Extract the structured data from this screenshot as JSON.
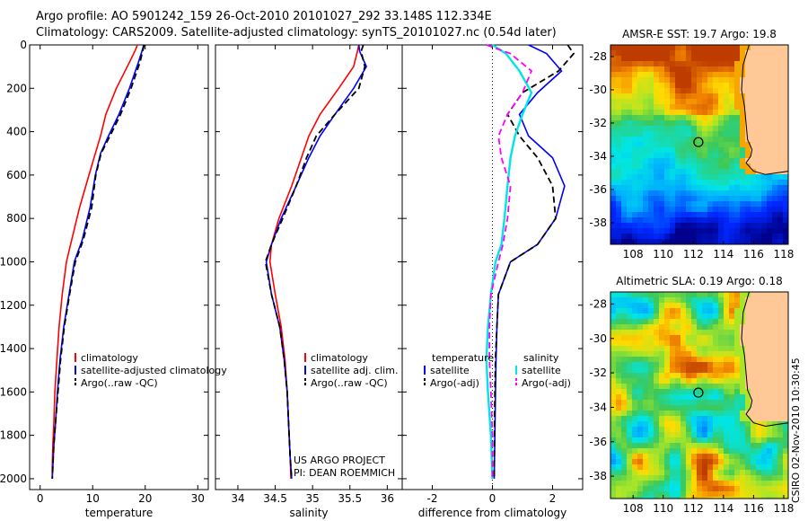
{
  "header": {
    "line1": "Argo profile: AO 5901242_159 26-Oct-2010 20101027_292 33.148S 112.334E",
    "line2": "Climatology: CARS2009. Satellite-adjusted climatology: synTS_20101027.nc (0.54d later)"
  },
  "side_label": "CSIRO 02-Nov-2010 10:30:45",
  "colors": {
    "climatology": "#ff0000",
    "satellite": "#0000ff",
    "argo": "#000000",
    "sat_cyan": "#00e5e5",
    "argo_adj_magenta": "#ff00ff",
    "land": "#ffc896"
  },
  "chart_data": [
    {
      "type": "line",
      "id": "temperature",
      "xlabel": "temperature",
      "ylabel": "",
      "xlim": [
        -2,
        32
      ],
      "ylim": [
        2050,
        0
      ],
      "xticks": [
        0,
        10,
        20,
        30
      ],
      "yticks": [
        0,
        200,
        400,
        600,
        800,
        1000,
        1200,
        1400,
        1600,
        1800,
        2000
      ],
      "legend": {
        "entries": [
          "climatology",
          "satellite-adjusted climatology",
          "Argo(..raw -QC)"
        ],
        "placement": "bottom-right"
      },
      "series": [
        {
          "name": "climatology",
          "color": "#ff0000",
          "style": "solid",
          "x": [
            18.5,
            18.2,
            17,
            14.5,
            12.5,
            11.5,
            10.5,
            9.3,
            7.5,
            6,
            5,
            4.2,
            3.6,
            3.2,
            2.8,
            2.6,
            2.4,
            2.3,
            2.3
          ],
          "y": [
            0,
            20,
            80,
            200,
            320,
            420,
            500,
            600,
            750,
            900,
            1000,
            1150,
            1300,
            1450,
            1600,
            1750,
            1850,
            1950,
            2000
          ]
        },
        {
          "name": "satellite-adjusted climatology",
          "color": "#0000ff",
          "style": "solid",
          "x": [
            19.7,
            19.5,
            18.7,
            17,
            15,
            13,
            11.5,
            10.5,
            9.5,
            8,
            6.5,
            5.5,
            4.5,
            3.8,
            3.3,
            2.9,
            2.6,
            2.4,
            2.3
          ],
          "y": [
            0,
            20,
            80,
            200,
            320,
            420,
            500,
            600,
            750,
            900,
            1000,
            1150,
            1300,
            1450,
            1600,
            1750,
            1850,
            1950,
            2000
          ]
        },
        {
          "name": "Argo(..raw -QC)",
          "color": "#000000",
          "style": "dash",
          "x": [
            19.8,
            19.6,
            19,
            17.3,
            15.3,
            13.3,
            11.6,
            10.6,
            9.8,
            8.2,
            6.7,
            5.6,
            4.6,
            3.9,
            3.4,
            2.9,
            2.6,
            2.4,
            2.3
          ],
          "y": [
            0,
            20,
            80,
            200,
            320,
            420,
            500,
            600,
            750,
            900,
            1000,
            1150,
            1300,
            1450,
            1600,
            1750,
            1850,
            1950,
            2000
          ]
        }
      ]
    },
    {
      "type": "line",
      "id": "salinity",
      "xlabel": "salinity",
      "ylabel": "",
      "xlim": [
        33.7,
        36.2
      ],
      "ylim": [
        2050,
        0
      ],
      "xticks": [
        34,
        34.5,
        35,
        35.5,
        36
      ],
      "yticks": [
        0,
        200,
        400,
        600,
        800,
        1000,
        1200,
        1400,
        1600,
        1800,
        2000
      ],
      "legend": {
        "entries": [
          "climatology",
          "satellite adj. clim.",
          "Argo(..raw -QC)"
        ],
        "placement": "bottom-right"
      },
      "annotations": [
        "US ARGO PROJECT",
        "PI: DEAN ROEMMICH"
      ],
      "series": [
        {
          "name": "climatology",
          "color": "#ff0000",
          "style": "solid",
          "x": [
            35.62,
            35.6,
            35.55,
            35.35,
            35.1,
            34.95,
            34.85,
            34.72,
            34.55,
            34.45,
            34.43,
            34.5,
            34.58,
            34.63,
            34.66,
            34.68,
            34.7,
            34.71
          ],
          "y": [
            0,
            30,
            100,
            200,
            320,
            420,
            520,
            650,
            800,
            920,
            1000,
            1150,
            1300,
            1450,
            1600,
            1750,
            1900,
            2000
          ]
        },
        {
          "name": "satellite adj. clim.",
          "color": "#0000ff",
          "style": "solid",
          "x": [
            35.62,
            35.63,
            35.72,
            35.55,
            35.3,
            35.1,
            34.95,
            34.78,
            34.58,
            34.45,
            34.38,
            34.45,
            34.56,
            34.62,
            34.66,
            34.68,
            34.7,
            34.72
          ],
          "y": [
            0,
            30,
            100,
            200,
            320,
            420,
            520,
            650,
            800,
            920,
            1000,
            1150,
            1300,
            1450,
            1600,
            1750,
            1900,
            2000
          ]
        },
        {
          "name": "Argo(..raw -QC)",
          "color": "#000000",
          "style": "dash",
          "x": [
            35.68,
            35.65,
            35.7,
            35.62,
            35.3,
            35.05,
            34.92,
            34.78,
            34.6,
            34.45,
            34.37,
            34.45,
            34.56,
            34.62,
            34.66,
            34.68,
            34.7,
            34.72
          ],
          "y": [
            0,
            30,
            100,
            200,
            320,
            420,
            520,
            650,
            800,
            920,
            1000,
            1150,
            1300,
            1450,
            1600,
            1750,
            1900,
            2000
          ]
        }
      ]
    },
    {
      "type": "line",
      "id": "difference",
      "xlabel": "difference from climatology",
      "ylabel": "",
      "xlim": [
        -3,
        3
      ],
      "ylim": [
        2050,
        0
      ],
      "xticks": [
        -2,
        0,
        2
      ],
      "yticks": [
        0,
        200,
        400,
        600,
        800,
        1000,
        1200,
        1400,
        1600,
        1800,
        2000
      ],
      "legend": {
        "left_title": "temperature",
        "right_title": "salinity",
        "entries": [
          "satellite",
          "Argo(-adj)",
          "satellite",
          "Argo(-adj)"
        ],
        "placement": "bottom-center"
      },
      "series": [
        {
          "name": "satellite",
          "group": "temperature",
          "color": "#0000ff",
          "style": "solid",
          "x": [
            1.2,
            1.8,
            2.3,
            1.5,
            0.9,
            1.2,
            2.0,
            2.4,
            2.1,
            1.5,
            0.6,
            0.2,
            0.15,
            0.12,
            0.1,
            0.08,
            0.06
          ],
          "y": [
            0,
            40,
            120,
            220,
            320,
            420,
            520,
            650,
            800,
            920,
            1000,
            1150,
            1300,
            1450,
            1600,
            1800,
            2000
          ]
        },
        {
          "name": "Argo(-adj)",
          "group": "temperature",
          "color": "#000000",
          "style": "dash",
          "x": [
            2.5,
            2.7,
            2.2,
            1.0,
            0.5,
            0.9,
            1.5,
            2.0,
            2.1,
            1.5,
            0.6,
            0.2,
            0.15,
            0.1,
            0.08,
            0.07,
            0.06
          ],
          "y": [
            0,
            40,
            120,
            220,
            320,
            420,
            520,
            650,
            800,
            920,
            1000,
            1150,
            1300,
            1450,
            1600,
            1800,
            2000
          ]
        },
        {
          "name": "satellite",
          "group": "salinity",
          "color": "#00e5e5",
          "style": "solid",
          "x": [
            0,
            0.45,
            0.9,
            1.3,
            1.0,
            0.75,
            0.6,
            0.5,
            0.4,
            0.3,
            0.1,
            -0.05,
            -0.15,
            -0.2,
            -0.15,
            -0.05,
            0
          ],
          "y": [
            0,
            40,
            120,
            220,
            320,
            420,
            520,
            650,
            800,
            920,
            1000,
            1150,
            1300,
            1450,
            1600,
            1800,
            2000
          ]
        },
        {
          "name": "Argo(-adj)",
          "group": "salinity",
          "color": "#ff00ff",
          "style": "dash",
          "x": [
            -0.2,
            0.6,
            1.3,
            1.0,
            0.5,
            0.2,
            0.3,
            0.6,
            0.5,
            0.35,
            0.2,
            -0.05,
            -0.1,
            -0.1,
            -0.05,
            0,
            0
          ],
          "y": [
            0,
            40,
            120,
            220,
            320,
            420,
            520,
            650,
            800,
            920,
            1000,
            1150,
            1300,
            1450,
            1600,
            1800,
            2000
          ]
        }
      ]
    },
    {
      "type": "heatmap",
      "id": "sst_map",
      "title": "AMSR-E SST: 19.7 Argo: 19.8",
      "xlim": [
        106.5,
        118.3
      ],
      "ylim": [
        -39.3,
        -27.3
      ],
      "xticks": [
        108,
        110,
        112,
        114,
        116,
        118
      ],
      "yticks": [
        -28,
        -30,
        -32,
        -34,
        -36,
        -38
      ],
      "argo_position": [
        112.334,
        -33.148
      ],
      "coast_lon": [
        115.7,
        115.3,
        115.2,
        115.4,
        115.5,
        115.6,
        115.9,
        115.8,
        115.5,
        116.0,
        116.8,
        117.5,
        118.3
      ],
      "coast_lat": [
        -27.3,
        -28.5,
        -30.0,
        -31.0,
        -32.0,
        -33.0,
        -33.6,
        -34.0,
        -34.4,
        -34.9,
        -35.1,
        -35.0,
        -34.9
      ]
    },
    {
      "type": "heatmap",
      "id": "sla_map",
      "title": "Altimetric SLA: 0.19 Argo: 0.18",
      "xlim": [
        106.5,
        118.3
      ],
      "ylim": [
        -39.3,
        -27.3
      ],
      "xticks": [
        108,
        110,
        112,
        114,
        116,
        118
      ],
      "yticks": [
        -28,
        -30,
        -32,
        -34,
        -36,
        -38
      ],
      "argo_position": [
        112.334,
        -33.148
      ],
      "coast_lon": [
        115.7,
        115.3,
        115.2,
        115.4,
        115.5,
        115.6,
        115.9,
        115.8,
        115.5,
        116.0,
        116.8,
        117.5,
        118.3
      ],
      "coast_lat": [
        -27.3,
        -28.5,
        -30.0,
        -31.0,
        -32.0,
        -33.0,
        -33.6,
        -34.0,
        -34.4,
        -34.9,
        -35.1,
        -35.0,
        -34.9
      ]
    }
  ]
}
